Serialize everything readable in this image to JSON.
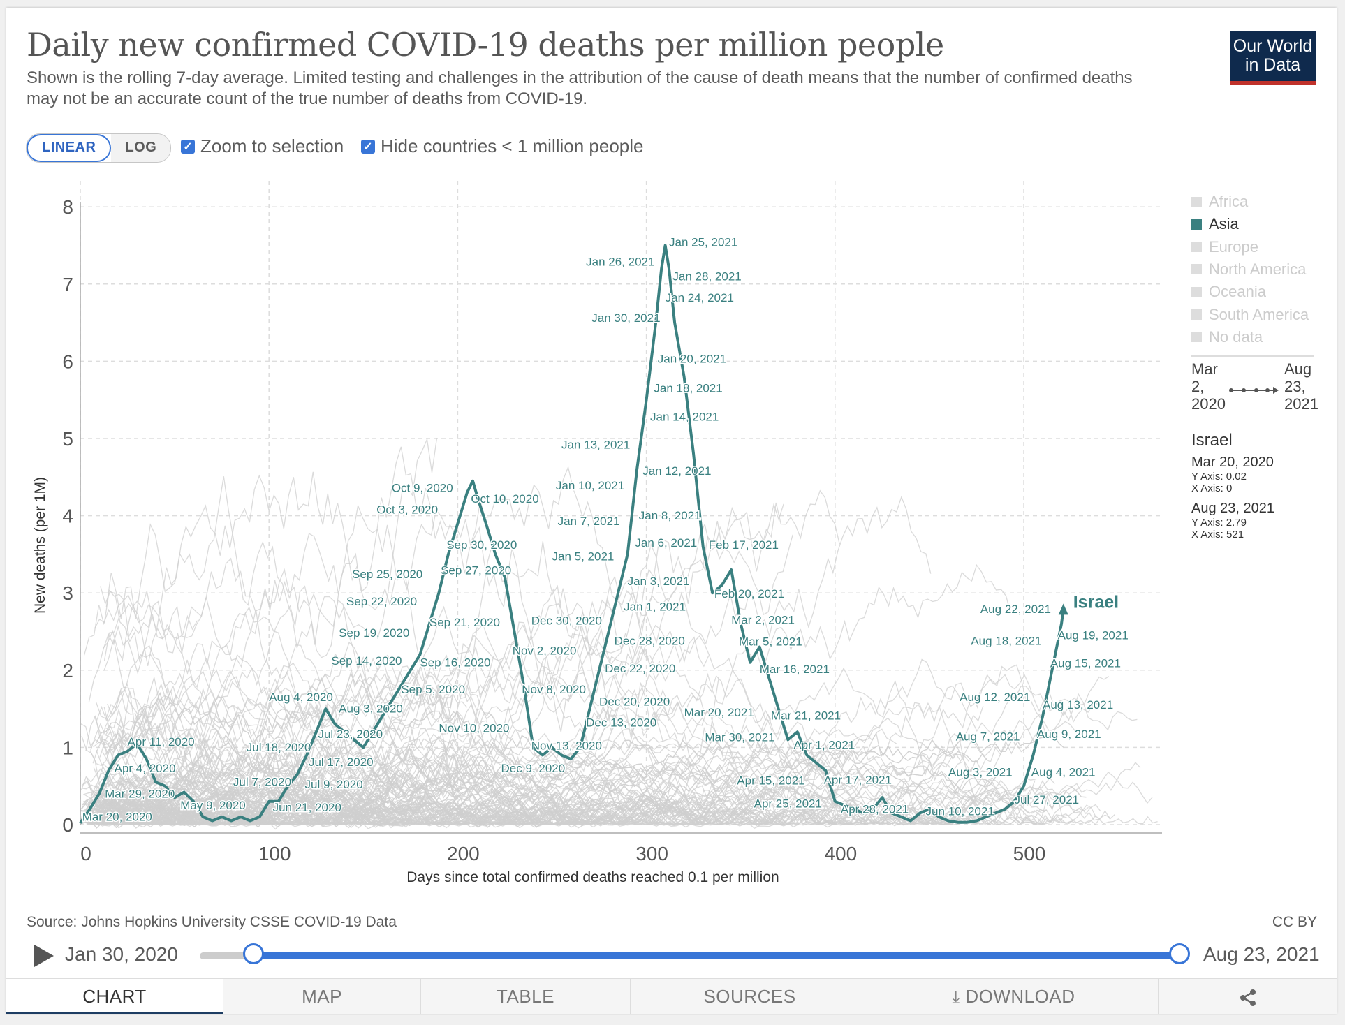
{
  "header": {
    "title": "Daily new confirmed COVID-19 deaths per million people",
    "subtitle": "Shown is the rolling 7-day average. Limited testing and challenges in the attribution of the cause of death means that the number of confirmed deaths may not be an accurate count of the true number of deaths from COVID-19.",
    "logo_line1": "Our World",
    "logo_line2": "in Data"
  },
  "controls": {
    "linear_label": "LINEAR",
    "log_label": "LOG",
    "active_scale": "linear",
    "zoom_label": "Zoom to selection",
    "zoom_checked": true,
    "hide_label": "Hide countries < 1 million people",
    "hide_checked": true
  },
  "legend": {
    "items": [
      {
        "label": "Africa",
        "active": false
      },
      {
        "label": "Asia",
        "active": true
      },
      {
        "label": "Europe",
        "active": false
      },
      {
        "label": "North America",
        "active": false
      },
      {
        "label": "Oceania",
        "active": false
      },
      {
        "label": "South America",
        "active": false
      },
      {
        "label": "No data",
        "active": false
      }
    ],
    "range_start": [
      "Mar",
      "2,",
      "2020"
    ],
    "range_end": [
      "Aug",
      "23,",
      "2021"
    ],
    "country": "Israel",
    "start_point": {
      "date": "Mar 20, 2020",
      "y": "Y Axis: 0.02",
      "x": "X Axis: 0"
    },
    "end_point": {
      "date": "Aug 23, 2021",
      "y": "Y Axis: 2.79",
      "x": "X Axis: 521"
    }
  },
  "chart_data": {
    "type": "line",
    "title": "Daily new confirmed COVID-19 deaths per million people",
    "xlabel": "Days since total confirmed deaths reached 0.1 per million",
    "ylabel": "New deaths (per 1M)",
    "xlim": [
      0,
      570
    ],
    "ylim": [
      0,
      8.2
    ],
    "xticks": [
      0,
      100,
      200,
      300,
      400,
      500
    ],
    "yticks": [
      0,
      1,
      2,
      3,
      4,
      5,
      6,
      7,
      8
    ],
    "grid": true,
    "highlight_color": "#3a8080",
    "background_color": "#cfcfcf",
    "series": [
      {
        "name": "Israel",
        "x": [
          0,
          5,
          10,
          15,
          20,
          25,
          30,
          35,
          40,
          45,
          50,
          55,
          60,
          65,
          70,
          75,
          80,
          85,
          90,
          95,
          100,
          105,
          110,
          115,
          120,
          125,
          130,
          135,
          140,
          145,
          150,
          155,
          160,
          165,
          170,
          175,
          180,
          185,
          190,
          195,
          200,
          205,
          208,
          211,
          215,
          220,
          225,
          230,
          235,
          240,
          245,
          250,
          255,
          260,
          265,
          270,
          275,
          280,
          285,
          290,
          295,
          300,
          305,
          308,
          310,
          312,
          315,
          320,
          325,
          330,
          335,
          340,
          345,
          350,
          355,
          360,
          365,
          370,
          375,
          380,
          385,
          390,
          395,
          400,
          405,
          410,
          415,
          420,
          425,
          430,
          435,
          440,
          445,
          450,
          455,
          460,
          465,
          470,
          475,
          480,
          485,
          490,
          495,
          500,
          505,
          510,
          515,
          520,
          521
        ],
        "y": [
          0.02,
          0.2,
          0.4,
          0.7,
          0.9,
          0.95,
          1.05,
          0.85,
          0.55,
          0.5,
          0.35,
          0.42,
          0.3,
          0.1,
          0.05,
          0.1,
          0.05,
          0.1,
          0.05,
          0.1,
          0.3,
          0.3,
          0.5,
          0.65,
          0.9,
          1.2,
          1.5,
          1.3,
          1.2,
          1.1,
          1.0,
          1.2,
          1.4,
          1.6,
          1.8,
          2.0,
          2.2,
          2.6,
          3.0,
          3.5,
          3.9,
          4.3,
          4.45,
          4.2,
          3.9,
          3.5,
          3.2,
          2.5,
          1.8,
          1.0,
          0.9,
          1.0,
          0.9,
          0.85,
          1.0,
          1.5,
          2.0,
          2.5,
          3.0,
          3.5,
          4.6,
          5.5,
          6.5,
          7.2,
          7.5,
          7.2,
          6.5,
          5.8,
          4.8,
          3.6,
          3.0,
          3.1,
          3.3,
          2.6,
          2.1,
          2.3,
          1.9,
          1.5,
          1.1,
          1.2,
          0.9,
          0.8,
          0.7,
          0.3,
          0.25,
          0.2,
          0.15,
          0.2,
          0.35,
          0.15,
          0.1,
          0.05,
          0.15,
          0.2,
          0.1,
          0.05,
          0.03,
          0.03,
          0.05,
          0.1,
          0.15,
          0.2,
          0.3,
          0.5,
          0.9,
          1.4,
          2.0,
          2.6,
          2.79
        ]
      }
    ],
    "annotations": [
      {
        "text": "Mar 20, 2020",
        "x": 1,
        "y": 0.05
      },
      {
        "text": "Mar 29, 2020",
        "x": 13,
        "y": 0.35
      },
      {
        "text": "Apr 4, 2020",
        "x": 18,
        "y": 0.68
      },
      {
        "text": "Apr 11, 2020",
        "x": 25,
        "y": 1.02
      },
      {
        "text": "May 9, 2020",
        "x": 53,
        "y": 0.2
      },
      {
        "text": "Jul 7, 2020",
        "x": 81,
        "y": 0.5
      },
      {
        "text": "Jun 21, 2020",
        "x": 102,
        "y": 0.17
      },
      {
        "text": "Jul 18, 2020",
        "x": 88,
        "y": 0.95
      },
      {
        "text": "Jul 9, 2020",
        "x": 119,
        "y": 0.47
      },
      {
        "text": "Jul 17, 2020",
        "x": 121,
        "y": 0.76
      },
      {
        "text": "Jul 23, 2020",
        "x": 126,
        "y": 1.12
      },
      {
        "text": "Aug 4, 2020",
        "x": 100,
        "y": 1.6
      },
      {
        "text": "Aug 3, 2020",
        "x": 137,
        "y": 1.45
      },
      {
        "text": "Sep 14, 2020",
        "x": 133,
        "y": 2.07
      },
      {
        "text": "Sep 19, 2020",
        "x": 137,
        "y": 2.43
      },
      {
        "text": "Sep 22, 2020",
        "x": 141,
        "y": 2.84
      },
      {
        "text": "Sep 25, 2020",
        "x": 144,
        "y": 3.19
      },
      {
        "text": "Sep 5, 2020",
        "x": 170,
        "y": 1.7
      },
      {
        "text": "Sep 16, 2020",
        "x": 180,
        "y": 2.05
      },
      {
        "text": "Sep 21, 2020",
        "x": 185,
        "y": 2.57
      },
      {
        "text": "Sep 27, 2020",
        "x": 191,
        "y": 3.24
      },
      {
        "text": "Sep 30, 2020",
        "x": 194,
        "y": 3.57
      },
      {
        "text": "Oct 3, 2020",
        "x": 157,
        "y": 4.03
      },
      {
        "text": "Oct 9, 2020",
        "x": 165,
        "y": 4.31
      },
      {
        "text": "Oct 10, 2020",
        "x": 207,
        "y": 4.17
      },
      {
        "text": "Nov 2, 2020",
        "x": 229,
        "y": 2.2
      },
      {
        "text": "Nov 8, 2020",
        "x": 234,
        "y": 1.7
      },
      {
        "text": "Nov 10, 2020",
        "x": 190,
        "y": 1.2
      },
      {
        "text": "Nov 13, 2020",
        "x": 239,
        "y": 0.97
      },
      {
        "text": "Dec 9, 2020",
        "x": 223,
        "y": 0.68
      },
      {
        "text": "Dec 13, 2020",
        "x": 268,
        "y": 1.27
      },
      {
        "text": "Dec 20, 2020",
        "x": 275,
        "y": 1.54
      },
      {
        "text": "Dec 22, 2020",
        "x": 278,
        "y": 1.97
      },
      {
        "text": "Dec 28, 2020",
        "x": 283,
        "y": 2.33
      },
      {
        "text": "Dec 30, 2020",
        "x": 239,
        "y": 2.59
      },
      {
        "text": "Jan 1, 2021",
        "x": 288,
        "y": 2.77
      },
      {
        "text": "Jan 3, 2021",
        "x": 290,
        "y": 3.1
      },
      {
        "text": "Jan 5, 2021",
        "x": 250,
        "y": 3.42
      },
      {
        "text": "Jan 6, 2021",
        "x": 294,
        "y": 3.6
      },
      {
        "text": "Jan 7, 2021",
        "x": 253,
        "y": 3.88
      },
      {
        "text": "Jan 8, 2021",
        "x": 296,
        "y": 3.95
      },
      {
        "text": "Jan 10, 2021",
        "x": 252,
        "y": 4.34
      },
      {
        "text": "Jan 12, 2021",
        "x": 298,
        "y": 4.53
      },
      {
        "text": "Jan 13, 2021",
        "x": 255,
        "y": 4.87
      },
      {
        "text": "Jan 14, 2021",
        "x": 302,
        "y": 5.23
      },
      {
        "text": "Jan 18, 2021",
        "x": 304,
        "y": 5.6
      },
      {
        "text": "Jan 20, 2021",
        "x": 306,
        "y": 5.98
      },
      {
        "text": "Jan 30, 2021",
        "x": 271,
        "y": 6.51
      },
      {
        "text": "Jan 24, 2021",
        "x": 310,
        "y": 6.77
      },
      {
        "text": "Jan 28, 2021",
        "x": 314,
        "y": 7.05
      },
      {
        "text": "Jan 26, 2021",
        "x": 268,
        "y": 7.24
      },
      {
        "text": "Jan 25, 2021",
        "x": 312,
        "y": 7.49
      },
      {
        "text": "Feb 17, 2021",
        "x": 333,
        "y": 3.57
      },
      {
        "text": "Feb 20, 2021",
        "x": 336,
        "y": 2.94
      },
      {
        "text": "Mar 2, 2021",
        "x": 345,
        "y": 2.6
      },
      {
        "text": "Mar 5, 2021",
        "x": 349,
        "y": 2.32
      },
      {
        "text": "Mar 16, 2021",
        "x": 360,
        "y": 1.96
      },
      {
        "text": "Mar 20, 2021",
        "x": 320,
        "y": 1.4
      },
      {
        "text": "Mar 21, 2021",
        "x": 366,
        "y": 1.36
      },
      {
        "text": "Mar 30, 2021",
        "x": 331,
        "y": 1.08
      },
      {
        "text": "Apr 1, 2021",
        "x": 378,
        "y": 0.98
      },
      {
        "text": "Apr 15, 2021",
        "x": 348,
        "y": 0.52
      },
      {
        "text": "Apr 17, 2021",
        "x": 394,
        "y": 0.53
      },
      {
        "text": "Apr 25, 2021",
        "x": 357,
        "y": 0.22
      },
      {
        "text": "Apr 28, 2021",
        "x": 403,
        "y": 0.15
      },
      {
        "text": "Jun 10, 2021",
        "x": 448,
        "y": 0.12
      },
      {
        "text": "Jul 27, 2021",
        "x": 495,
        "y": 0.27
      },
      {
        "text": "Aug 3, 2021",
        "x": 460,
        "y": 0.63
      },
      {
        "text": "Aug 4, 2021",
        "x": 504,
        "y": 0.63
      },
      {
        "text": "Aug 7, 2021",
        "x": 464,
        "y": 1.09
      },
      {
        "text": "Aug 9, 2021",
        "x": 507,
        "y": 1.12
      },
      {
        "text": "Aug 12, 2021",
        "x": 466,
        "y": 1.6
      },
      {
        "text": "Aug 13, 2021",
        "x": 510,
        "y": 1.5
      },
      {
        "text": "Aug 15, 2021",
        "x": 514,
        "y": 2.04
      },
      {
        "text": "Aug 18, 2021",
        "x": 472,
        "y": 2.33
      },
      {
        "text": "Aug 19, 2021",
        "x": 518,
        "y": 2.4
      },
      {
        "text": "Aug 22, 2021",
        "x": 477,
        "y": 2.74
      }
    ],
    "series_label": "Israel"
  },
  "footer": {
    "source": "Source: Johns Hopkins University CSSE COVID-19 Data",
    "license": "CC BY",
    "timeline_start": "Jan 30, 2020",
    "timeline_end": "Aug 23, 2021",
    "tabs": [
      "CHART",
      "MAP",
      "TABLE",
      "SOURCES",
      "DOWNLOAD"
    ],
    "active_tab": "CHART"
  }
}
